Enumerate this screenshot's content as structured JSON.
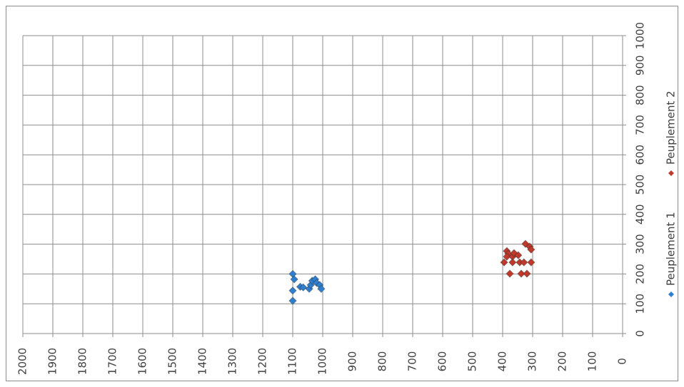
{
  "chart_data": {
    "type": "scatter",
    "xlim": [
      0,
      1000
    ],
    "xticks": [
      0,
      100,
      200,
      300,
      400,
      500,
      600,
      700,
      800,
      900,
      1000
    ],
    "ylim": [
      0,
      2000
    ],
    "yticks": [
      0,
      100,
      200,
      300,
      400,
      500,
      600,
      700,
      800,
      900,
      1000,
      1100,
      1200,
      1300,
      1400,
      1500,
      1600,
      1700,
      1800,
      1900,
      2000
    ],
    "grid": true,
    "legend": "right",
    "series": [
      {
        "name": "Peuplement 1",
        "color": "#2e7fd0",
        "x": [
          200,
          182,
          144,
          110,
          157,
          155,
          150,
          163,
          177,
          182,
          170,
          163,
          150
        ],
        "values": [
          1100,
          1095,
          1100,
          1100,
          1075,
          1065,
          1045,
          1040,
          1035,
          1025,
          1020,
          1010,
          1005
        ]
      },
      {
        "name": "Peuplement 2",
        "color": "#c0392b",
        "x": [
          239,
          277,
          268,
          258,
          258,
          239,
          201,
          270,
          263,
          239,
          201,
          239,
          201,
          301,
          292,
          282,
          239
        ],
        "values": [
          395,
          386,
          381,
          386,
          367,
          367,
          376,
          362,
          348,
          343,
          338,
          329,
          319,
          324,
          310,
          305,
          305
        ]
      }
    ]
  }
}
